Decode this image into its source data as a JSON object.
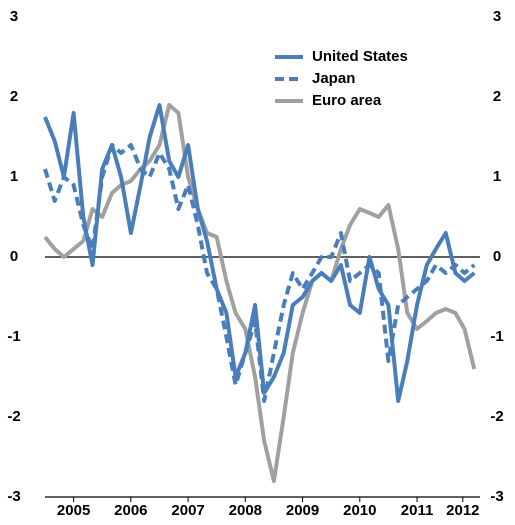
{
  "chart_data": {
    "type": "line",
    "x": [
      2005.0,
      2005.17,
      2005.33,
      2005.5,
      2005.67,
      2005.83,
      2006.0,
      2006.17,
      2006.33,
      2006.5,
      2006.67,
      2006.83,
      2007.0,
      2007.17,
      2007.33,
      2007.5,
      2007.67,
      2007.83,
      2008.0,
      2008.17,
      2008.33,
      2008.5,
      2008.67,
      2008.83,
      2009.0,
      2009.17,
      2009.33,
      2009.5,
      2009.67,
      2009.83,
      2010.0,
      2010.17,
      2010.33,
      2010.5,
      2010.67,
      2010.83,
      2011.0,
      2011.17,
      2011.33,
      2011.5,
      2011.67,
      2011.83,
      2012.0,
      2012.17,
      2012.33,
      2012.5
    ],
    "series": [
      {
        "name": "United States",
        "color": "#4a7ebb",
        "dashed": false,
        "values": [
          1.75,
          1.45,
          1.0,
          1.8,
          0.5,
          -0.1,
          1.1,
          1.4,
          1.0,
          0.3,
          0.9,
          1.5,
          1.9,
          1.2,
          1.0,
          1.4,
          0.6,
          0.2,
          -0.4,
          -0.7,
          -1.5,
          -1.2,
          -0.6,
          -1.7,
          -1.5,
          -1.2,
          -0.6,
          -0.5,
          -0.3,
          -0.2,
          -0.3,
          -0.1,
          -0.6,
          -0.7,
          0.0,
          -0.4,
          -0.6,
          -1.8,
          -1.3,
          -0.6,
          -0.1,
          0.1,
          0.3,
          -0.2,
          -0.3,
          -0.2
        ]
      },
      {
        "name": "Japan",
        "color": "#4a7ebb",
        "dashed": true,
        "values": [
          1.1,
          0.7,
          1.0,
          0.9,
          0.4,
          0.1,
          1.0,
          1.4,
          1.3,
          1.4,
          1.1,
          1.0,
          1.3,
          1.1,
          0.6,
          0.9,
          0.4,
          -0.2,
          -0.4,
          -1.0,
          -1.6,
          -1.2,
          -0.8,
          -1.8,
          -1.2,
          -0.6,
          -0.2,
          -0.4,
          -0.2,
          0.0,
          0.0,
          0.3,
          -0.3,
          -0.2,
          -0.1,
          -0.2,
          -1.3,
          -0.6,
          -0.5,
          -0.4,
          -0.3,
          -0.1,
          -0.2,
          -0.1,
          -0.2,
          -0.1
        ]
      },
      {
        "name": "Euro area",
        "color": "#a0a0a0",
        "dashed": false,
        "values": [
          0.25,
          0.1,
          0.0,
          0.1,
          0.2,
          0.6,
          0.5,
          0.8,
          0.9,
          0.95,
          1.1,
          1.2,
          1.4,
          1.9,
          1.8,
          1.0,
          0.6,
          0.3,
          0.25,
          -0.3,
          -0.7,
          -0.9,
          -1.5,
          -2.3,
          -2.8,
          -2.0,
          -1.2,
          -0.7,
          -0.3,
          -0.2,
          -0.3,
          0.1,
          0.4,
          0.6,
          0.55,
          0.5,
          0.65,
          0.1,
          -0.7,
          -0.9,
          -0.8,
          -0.7,
          -0.65,
          -0.7,
          -0.9,
          -1.4
        ]
      }
    ],
    "xlim": [
      2005.0,
      2012.6
    ],
    "xticks": [
      {
        "value": 2005.5,
        "label": "2005"
      },
      {
        "value": 2006.5,
        "label": "2006"
      },
      {
        "value": 2007.5,
        "label": "2007"
      },
      {
        "value": 2008.5,
        "label": "2008"
      },
      {
        "value": 2009.5,
        "label": "2009"
      },
      {
        "value": 2010.5,
        "label": "2010"
      },
      {
        "value": 2011.5,
        "label": "2011"
      },
      {
        "value": 2012.3,
        "label": "2012"
      }
    ],
    "ylim": [
      -3,
      3
    ],
    "yticks": [
      -3,
      -2,
      -1,
      0,
      1,
      2,
      3
    ],
    "y2lim": [
      -3,
      3
    ],
    "y2ticks": [
      -3,
      -2,
      -1,
      0,
      1,
      2,
      3
    ],
    "legend": "top-right"
  }
}
